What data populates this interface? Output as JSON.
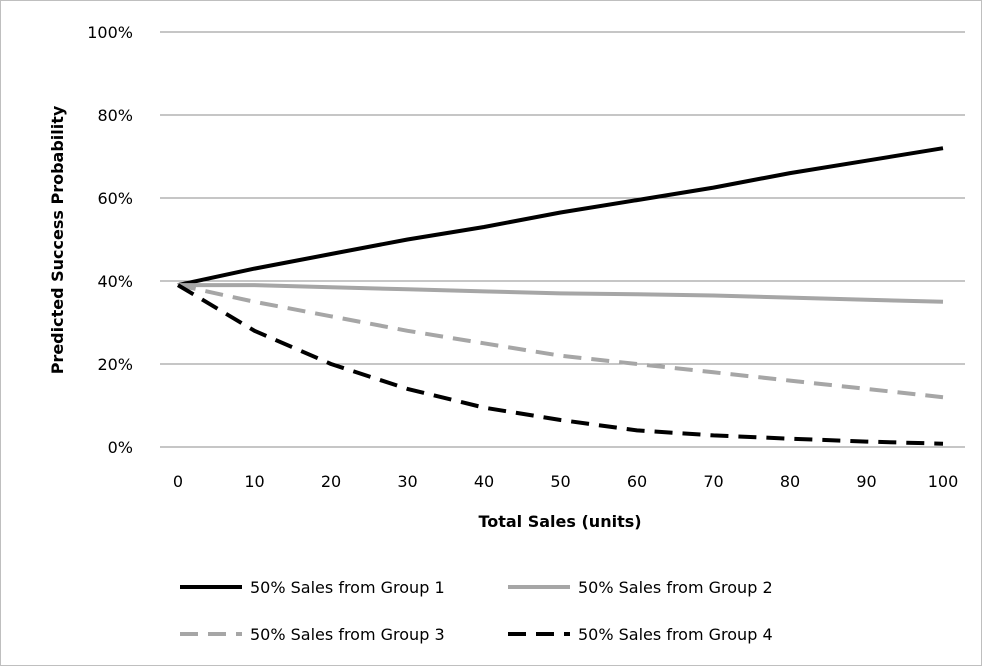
{
  "chart_data": {
    "type": "line",
    "xlabel": "Total Sales (units)",
    "ylabel": "Predicted Success  Probability",
    "xlim": [
      0,
      100
    ],
    "ylim": [
      0,
      100
    ],
    "x_ticks": [
      0,
      10,
      20,
      30,
      40,
      50,
      60,
      70,
      80,
      90,
      100
    ],
    "y_ticks": [
      "0%",
      "20%",
      "40%",
      "60%",
      "80%",
      "100%"
    ],
    "grid": "horizontal",
    "legend_position": "bottom",
    "x": [
      0,
      10,
      20,
      30,
      40,
      50,
      60,
      70,
      80,
      90,
      100
    ],
    "series": [
      {
        "name": "50% Sales from Group 1",
        "color": "#000000",
        "dash": "solid",
        "values": [
          39,
          43,
          46.5,
          50,
          53,
          56.5,
          59.5,
          62.5,
          66,
          69,
          72
        ]
      },
      {
        "name": "50% Sales from Group 2",
        "color": "#a6a6a6",
        "dash": "solid",
        "values": [
          39,
          39,
          38.5,
          38,
          37.5,
          37,
          36.8,
          36.5,
          36,
          35.5,
          35
        ]
      },
      {
        "name": "50% Sales from Group 3",
        "color": "#a6a6a6",
        "dash": "dashed",
        "values": [
          39,
          35,
          31.5,
          28,
          25,
          22,
          20,
          18,
          16,
          14,
          12
        ]
      },
      {
        "name": "50% Sales from Group 4",
        "color": "#000000",
        "dash": "dashed",
        "values": [
          39,
          28,
          20,
          14,
          9.5,
          6.5,
          4,
          2.8,
          2,
          1.3,
          0.8
        ]
      }
    ]
  }
}
